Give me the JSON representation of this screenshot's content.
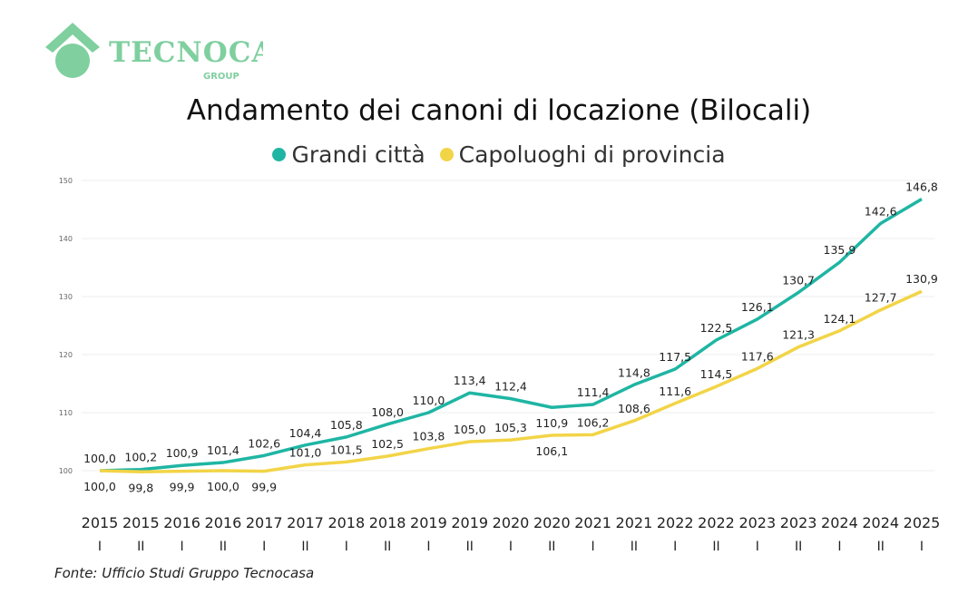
{
  "logo": {
    "text": "TECNOCASA",
    "sub": "GROUP",
    "color": "#7fcf9f"
  },
  "chart_data": {
    "type": "line",
    "title": "Andamento dei canoni di locazione (Bilocali)",
    "xlabel": "",
    "ylabel": "",
    "categories": [
      [
        "2015",
        "I"
      ],
      [
        "2015",
        "II"
      ],
      [
        "2016",
        "I"
      ],
      [
        "2016",
        "II"
      ],
      [
        "2017",
        "I"
      ],
      [
        "2017",
        "II"
      ],
      [
        "2018",
        "I"
      ],
      [
        "2018",
        "II"
      ],
      [
        "2019",
        "I"
      ],
      [
        "2019",
        "II"
      ],
      [
        "2020",
        "I"
      ],
      [
        "2020",
        "II"
      ],
      [
        "2021",
        "I"
      ],
      [
        "2021",
        "II"
      ],
      [
        "2022",
        "I"
      ],
      [
        "2022",
        "II"
      ],
      [
        "2023",
        "I"
      ],
      [
        "2023",
        "II"
      ],
      [
        "2024",
        "I"
      ],
      [
        "2024",
        "II"
      ],
      [
        "2025",
        "I"
      ]
    ],
    "ylim": [
      100,
      150
    ],
    "yticks": [
      100,
      110,
      120,
      130,
      140,
      150
    ],
    "grid": true,
    "legend_position": "top",
    "series": [
      {
        "name": "Grandi città",
        "color": "#1fb5a3",
        "values": [
          100.0,
          100.2,
          100.9,
          101.4,
          102.6,
          104.4,
          105.8,
          108.0,
          110.0,
          113.4,
          112.4,
          110.9,
          111.4,
          114.8,
          117.5,
          122.5,
          126.1,
          130.7,
          135.9,
          142.6,
          146.8
        ]
      },
      {
        "name": "Capoluoghi di provincia",
        "color": "#f2d447",
        "values": [
          100.0,
          99.8,
          99.9,
          100.0,
          99.9,
          101.0,
          101.5,
          102.5,
          103.8,
          105.0,
          105.3,
          106.1,
          106.2,
          108.6,
          111.6,
          114.5,
          117.6,
          121.3,
          124.1,
          127.7,
          130.9
        ]
      }
    ]
  },
  "source": "Fonte: Ufficio Studi Gruppo Tecnocasa"
}
